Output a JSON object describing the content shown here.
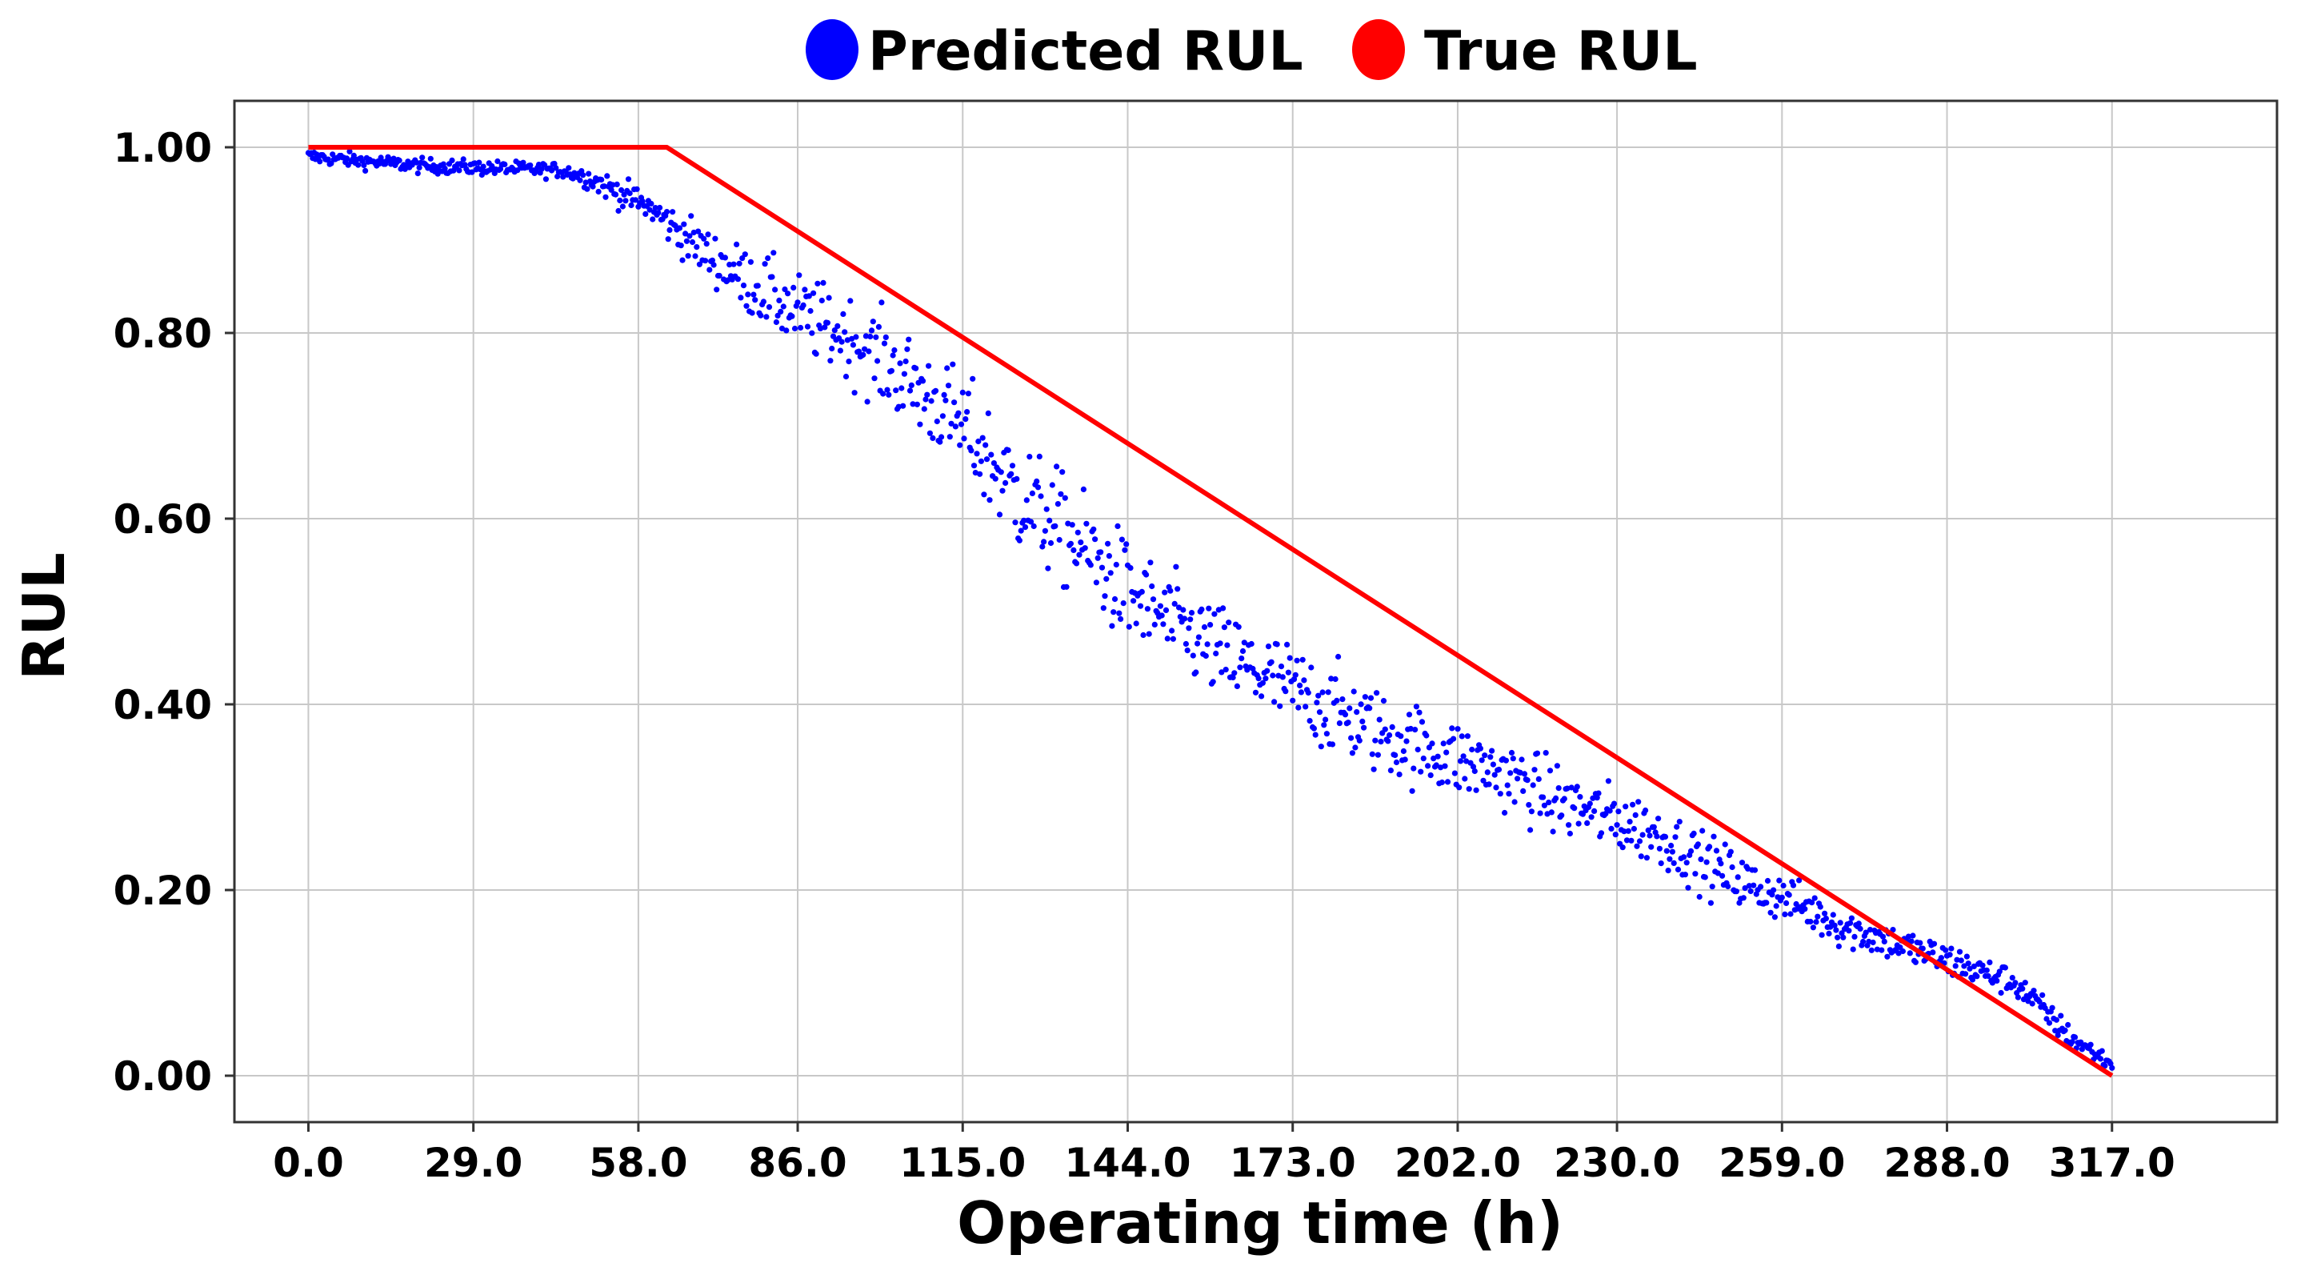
{
  "chart_data": {
    "type": "scatter",
    "title": "",
    "xlabel": "Operating time (h)",
    "ylabel": "RUL",
    "xlim": [
      -13.0,
      346.0
    ],
    "ylim": [
      -0.05,
      1.05
    ],
    "xticks": [
      0,
      29,
      58,
      86,
      115,
      144,
      173,
      202,
      230,
      259,
      288,
      317
    ],
    "xtick_labels": [
      "0.0",
      "29.0",
      "58.0",
      "86.0",
      "115.0",
      "144.0",
      "173.0",
      "202.0",
      "230.0",
      "259.0",
      "288.0",
      "317.0"
    ],
    "yticks": [
      0.0,
      0.2,
      0.4,
      0.6,
      0.8,
      1.0
    ],
    "ytick_labels": [
      "0.00",
      "0.20",
      "0.40",
      "0.60",
      "0.80",
      "1.00"
    ],
    "grid": true,
    "legend_position": "top-center, outside the plot",
    "series": [
      {
        "name": "Predicted RUL",
        "kind": "scatter",
        "color": "#0000ff",
        "x": [
          0,
          10,
          20,
          30,
          40,
          45,
          50,
          55,
          60,
          65,
          70,
          75,
          80,
          85,
          90,
          95,
          100,
          105,
          110,
          115,
          120,
          125,
          130,
          135,
          140,
          145,
          150,
          155,
          160,
          165,
          170,
          175,
          180,
          185,
          190,
          195,
          200,
          205,
          210,
          215,
          220,
          225,
          230,
          235,
          240,
          245,
          250,
          255,
          260,
          265,
          270,
          275,
          280,
          285,
          290,
          295,
          300,
          305,
          310,
          315,
          317
        ],
        "y": [
          0.99,
          0.985,
          0.98,
          0.978,
          0.976,
          0.975,
          0.965,
          0.95,
          0.935,
          0.91,
          0.885,
          0.865,
          0.845,
          0.825,
          0.81,
          0.795,
          0.775,
          0.75,
          0.725,
          0.7,
          0.66,
          0.625,
          0.6,
          0.575,
          0.545,
          0.515,
          0.495,
          0.475,
          0.455,
          0.44,
          0.425,
          0.41,
          0.395,
          0.38,
          0.365,
          0.355,
          0.345,
          0.335,
          0.325,
          0.31,
          0.295,
          0.285,
          0.275,
          0.265,
          0.25,
          0.23,
          0.215,
          0.2,
          0.19,
          0.175,
          0.16,
          0.15,
          0.14,
          0.13,
          0.12,
          0.11,
          0.1,
          0.07,
          0.04,
          0.02,
          0.012
        ],
        "noise": [
          0.004,
          0.004,
          0.004,
          0.004,
          0.004,
          0.004,
          0.006,
          0.008,
          0.008,
          0.012,
          0.014,
          0.016,
          0.02,
          0.02,
          0.022,
          0.022,
          0.024,
          0.026,
          0.026,
          0.028,
          0.03,
          0.032,
          0.03,
          0.03,
          0.03,
          0.028,
          0.026,
          0.026,
          0.026,
          0.026,
          0.026,
          0.024,
          0.024,
          0.024,
          0.022,
          0.022,
          0.022,
          0.02,
          0.02,
          0.02,
          0.02,
          0.018,
          0.018,
          0.018,
          0.016,
          0.016,
          0.016,
          0.014,
          0.012,
          0.012,
          0.012,
          0.01,
          0.01,
          0.01,
          0.01,
          0.008,
          0.008,
          0.008,
          0.006,
          0.005,
          0.004
        ],
        "points_per_hour": 4
      },
      {
        "name": "True RUL",
        "kind": "line",
        "color": "#ff0000",
        "x": [
          0,
          63,
          317
        ],
        "y": [
          1.0,
          1.0,
          0.0
        ]
      }
    ]
  }
}
